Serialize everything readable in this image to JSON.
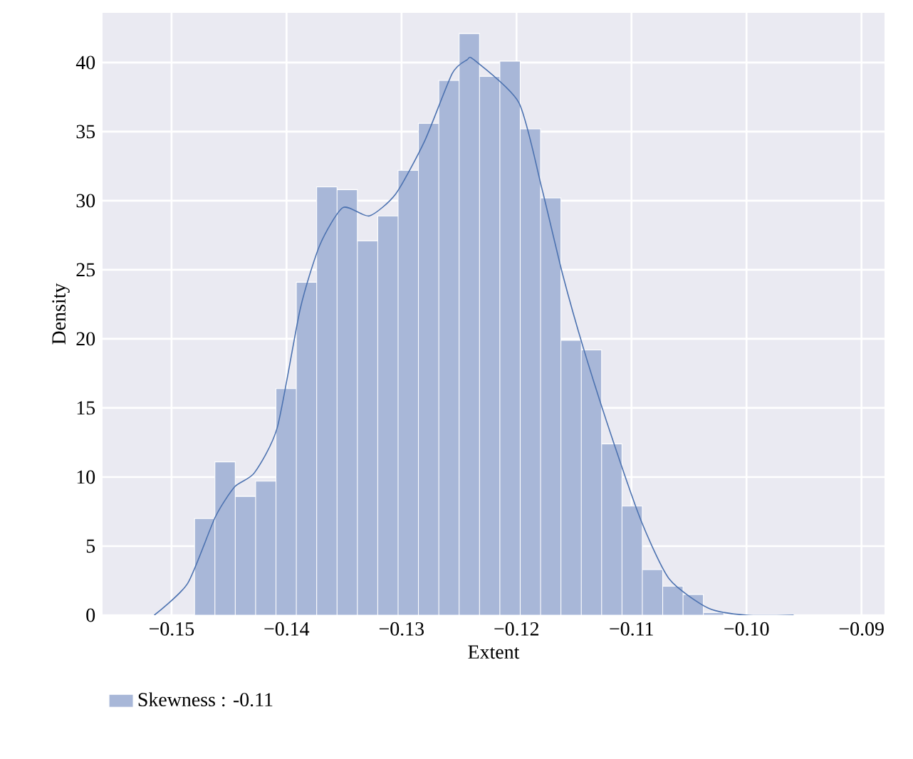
{
  "chart_data": {
    "type": "histogram",
    "xlabel": "Extent",
    "ylabel": "Density",
    "bins": [
      -0.148,
      -0.14623,
      -0.14446,
      -0.14269,
      -0.14092,
      -0.13915,
      -0.13738,
      -0.13561,
      -0.13384,
      -0.13207,
      -0.1303,
      -0.12853,
      -0.12676,
      -0.12499,
      -0.12322,
      -0.12145,
      -0.11968,
      -0.11791,
      -0.11614,
      -0.11437,
      -0.1126,
      -0.11083,
      -0.10906,
      -0.10729,
      -0.10552,
      -0.10375,
      -0.10198
    ],
    "series": [
      {
        "name": "Skewness : -0.11",
        "color": "#a8b7d8",
        "values": [
          7.0,
          11.1,
          8.6,
          9.7,
          16.4,
          24.1,
          31.0,
          30.8,
          27.1,
          28.9,
          32.2,
          35.6,
          38.7,
          42.1,
          39.0,
          40.1,
          35.2,
          30.2,
          19.9,
          19.2,
          12.4,
          7.9,
          3.3,
          2.1,
          1.5,
          0.2
        ]
      },
      {
        "type": "line",
        "color": "#4c72b0",
        "x": [
          -0.1515,
          -0.1486,
          -0.1462,
          -0.1445,
          -0.1428,
          -0.1408,
          -0.1388,
          -0.1371,
          -0.1351,
          -0.1328,
          -0.1305,
          -0.128,
          -0.1256,
          -0.1243,
          -0.1237,
          -0.1198,
          -0.1178,
          -0.116,
          -0.1141,
          -0.1116,
          -0.1091,
          -0.1067,
          -0.1033,
          -0.1,
          -0.0959
        ],
        "values": [
          0,
          2.3,
          7.1,
          9.3,
          10.3,
          13.6,
          22.2,
          26.8,
          29.5,
          28.9,
          30.5,
          34.3,
          39.2,
          40.2,
          40.2,
          37.1,
          30.9,
          24.7,
          19.1,
          12.6,
          6.7,
          2.6,
          0.5,
          0,
          0
        ]
      }
    ],
    "xlim": [
      -0.156,
      -0.088
    ],
    "ylim": [
      0,
      43.6
    ],
    "xticks": [
      {
        "value": -0.15,
        "label": "−0.15"
      },
      {
        "value": -0.14,
        "label": "−0.14"
      },
      {
        "value": -0.13,
        "label": "−0.13"
      },
      {
        "value": -0.12,
        "label": "−0.12"
      },
      {
        "value": -0.11,
        "label": "−0.11"
      },
      {
        "value": -0.1,
        "label": "−0.10"
      },
      {
        "value": -0.09,
        "label": "−0.09"
      }
    ],
    "yticks": [
      0,
      5,
      10,
      15,
      20,
      25,
      30,
      35,
      40
    ],
    "grid": true,
    "legend": "bottom left",
    "marker": "none"
  }
}
